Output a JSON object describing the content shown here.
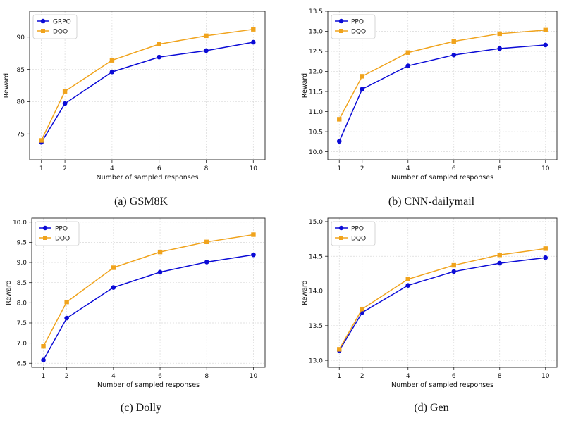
{
  "colors": {
    "series_a": "#0b0bd6",
    "series_b": "#f0a31c",
    "grid": "#d9d9d9"
  },
  "chart_data": [
    {
      "type": "line",
      "caption": "(a) GSM8K",
      "xlabel": "Number of sampled responses",
      "ylabel": "Reward",
      "x": [
        1,
        2,
        4,
        6,
        8,
        10
      ],
      "xticks": [
        1,
        2,
        4,
        6,
        8,
        10
      ],
      "xlim": [
        0.5,
        10.5
      ],
      "ylim": [
        71,
        94
      ],
      "yticks": [
        "75",
        "80",
        "85",
        "90"
      ],
      "ytick_values": [
        75,
        80,
        85,
        90
      ],
      "legend": "top-left",
      "grid": true,
      "series": [
        {
          "name": "GRPO",
          "marker": "circle",
          "values": [
            73.7,
            79.7,
            84.6,
            86.9,
            87.9,
            89.2
          ]
        },
        {
          "name": "DQO",
          "marker": "square",
          "values": [
            74.0,
            81.6,
            86.4,
            88.9,
            90.2,
            91.2
          ]
        }
      ]
    },
    {
      "type": "line",
      "caption": "(b) CNN-dailymail",
      "xlabel": "Number of sampled responses",
      "ylabel": "Reward",
      "x": [
        1,
        2,
        4,
        6,
        8,
        10
      ],
      "xticks": [
        1,
        2,
        4,
        6,
        8,
        10
      ],
      "xlim": [
        0.5,
        10.5
      ],
      "ylim": [
        9.8,
        13.5
      ],
      "yticks": [
        "10.0",
        "10.5",
        "11.0",
        "11.5",
        "12.0",
        "12.5",
        "13.0",
        "13.5"
      ],
      "ytick_values": [
        10.0,
        10.5,
        11.0,
        11.5,
        12.0,
        12.5,
        13.0,
        13.5
      ],
      "legend": "top-left",
      "grid": true,
      "series": [
        {
          "name": "PPO",
          "marker": "circle",
          "values": [
            10.26,
            11.56,
            12.14,
            12.41,
            12.57,
            12.66
          ]
        },
        {
          "name": "DQO",
          "marker": "square",
          "values": [
            10.81,
            11.88,
            12.47,
            12.75,
            12.94,
            13.03
          ]
        }
      ]
    },
    {
      "type": "line",
      "caption": "(c) Dolly",
      "xlabel": "Number of sampled responses",
      "ylabel": "Reward",
      "x": [
        1,
        2,
        4,
        6,
        8,
        10
      ],
      "xticks": [
        1,
        2,
        4,
        6,
        8,
        10
      ],
      "xlim": [
        0.5,
        10.5
      ],
      "ylim": [
        6.4,
        10.1
      ],
      "yticks": [
        "6.5",
        "7.0",
        "7.5",
        "8.0",
        "8.5",
        "9.0",
        "9.5",
        "10.0"
      ],
      "ytick_values": [
        6.5,
        7.0,
        7.5,
        8.0,
        8.5,
        9.0,
        9.5,
        10.0
      ],
      "legend": "top-left",
      "grid": true,
      "series": [
        {
          "name": "PPO",
          "marker": "circle",
          "values": [
            6.58,
            7.62,
            8.38,
            8.76,
            9.01,
            9.19
          ]
        },
        {
          "name": "DQO",
          "marker": "square",
          "values": [
            6.92,
            8.02,
            8.87,
            9.26,
            9.51,
            9.69
          ]
        }
      ]
    },
    {
      "type": "line",
      "caption": "(d) Gen",
      "xlabel": "Number of sampled responses",
      "ylabel": "Reward",
      "x": [
        1,
        2,
        4,
        6,
        8,
        10
      ],
      "xticks": [
        1,
        2,
        4,
        6,
        8,
        10
      ],
      "xlim": [
        0.5,
        10.5
      ],
      "ylim": [
        12.9,
        15.05
      ],
      "yticks": [
        "13.0",
        "13.5",
        "14.0",
        "14.5",
        "15.0"
      ],
      "ytick_values": [
        13.0,
        13.5,
        14.0,
        14.5,
        15.0
      ],
      "legend": "top-left",
      "grid": true,
      "series": [
        {
          "name": "PPO",
          "marker": "circle",
          "values": [
            13.14,
            13.69,
            14.08,
            14.28,
            14.4,
            14.48
          ]
        },
        {
          "name": "DQO",
          "marker": "square",
          "values": [
            13.16,
            13.74,
            14.17,
            14.37,
            14.52,
            14.61
          ]
        }
      ]
    }
  ]
}
